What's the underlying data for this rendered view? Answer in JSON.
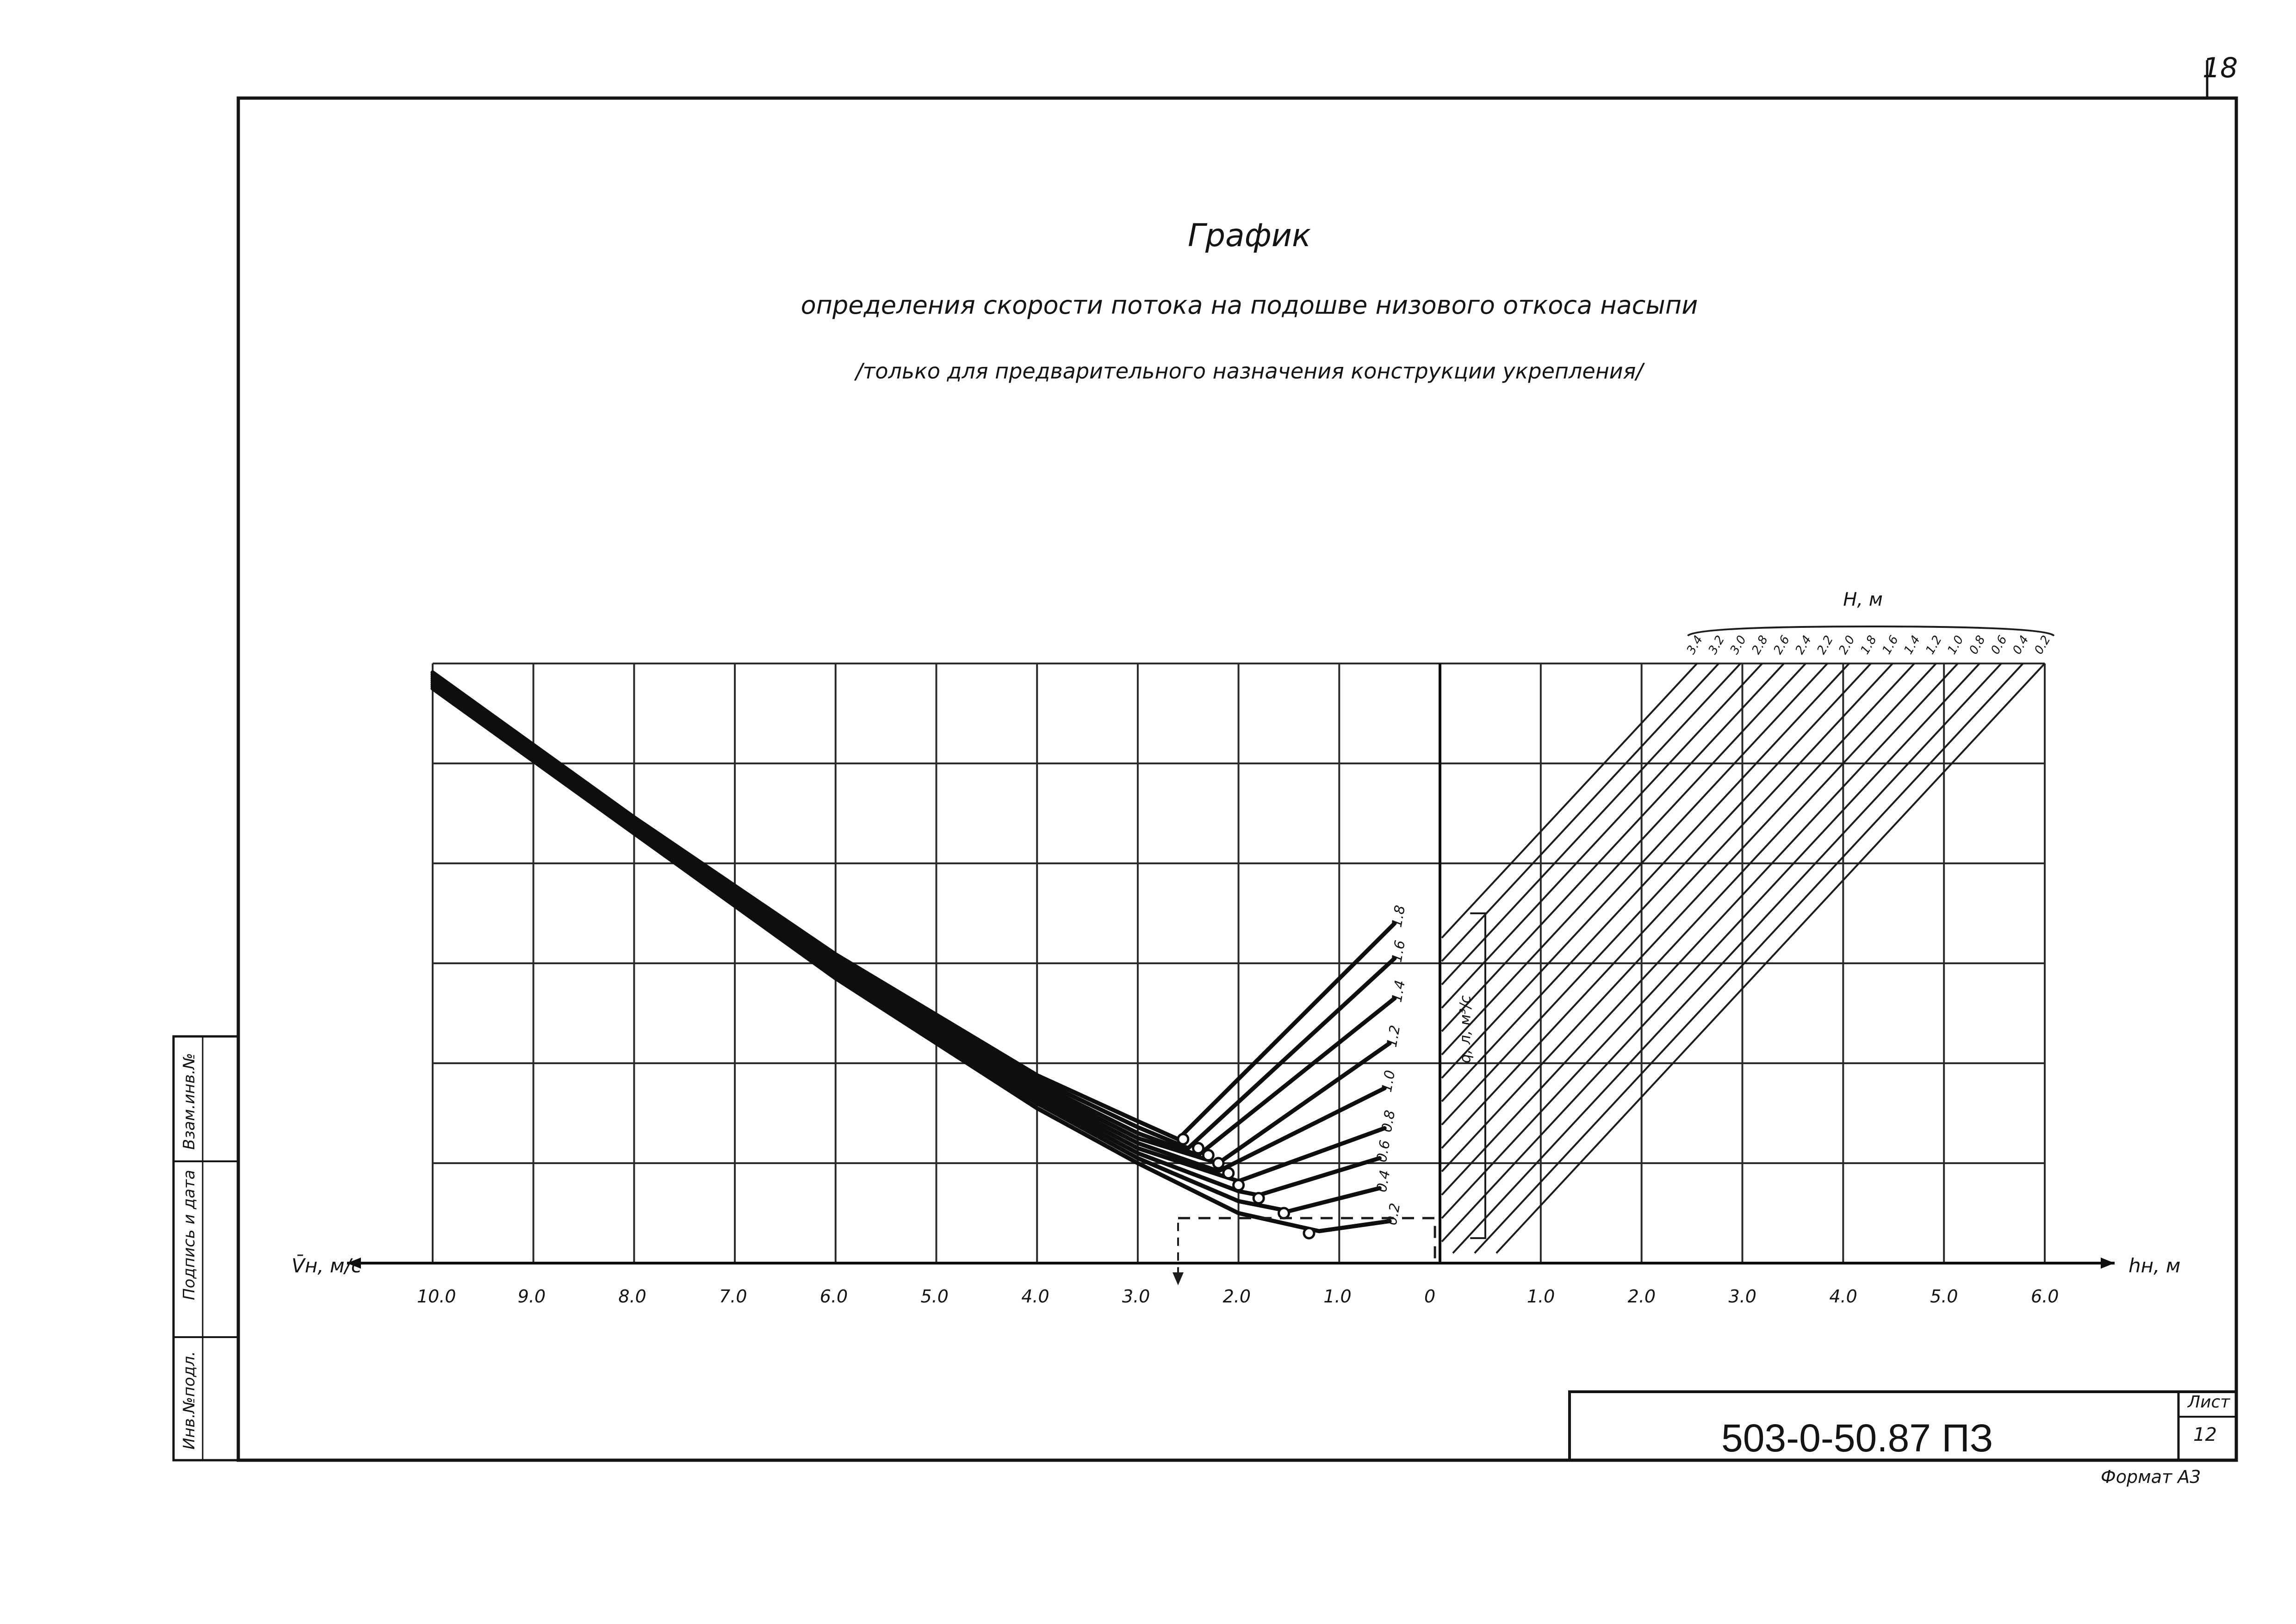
{
  "page": {
    "number": "18",
    "title": "График",
    "subtitle": "определения скорости потока на подошве низового откоса насыпи",
    "note": "/только для предварительного назначения конструкции укрепления/"
  },
  "title_block": {
    "doc_number": "503-0-50.87 ПЗ",
    "sheet_label": "Лист",
    "sheet_value": "12",
    "format": "Формат А3"
  },
  "side_stamp": {
    "cells": [
      "Инв.№подл.",
      "Подпись и дата",
      "Взам.инв.№"
    ]
  },
  "chart_data": {
    "type": "line",
    "left_panel": {
      "xlabel": "V̄н, м/с",
      "x_ticks": [
        "10.0",
        "9.0",
        "8.0",
        "7.0",
        "6.0",
        "5.0",
        "4.0",
        "3.0",
        "2.0",
        "1.0",
        "0"
      ],
      "xlim": [
        10.0,
        0
      ],
      "curve_family_label": "q, л, м³/с",
      "series": [
        {
          "name": "0.2",
          "points": [
            [
              10.0,
              5.75
            ],
            [
              8.0,
              4.3
            ],
            [
              6.0,
              2.85
            ],
            [
              4.0,
              1.55
            ],
            [
              3.0,
              1.0
            ],
            [
              2.0,
              0.5
            ],
            [
              1.2,
              0.32
            ],
            [
              0.5,
              0.42
            ]
          ],
          "marker": [
            1.3,
            0.3
          ]
        },
        {
          "name": "0.4",
          "points": [
            [
              10.0,
              5.77
            ],
            [
              8.0,
              4.32
            ],
            [
              6.0,
              2.88
            ],
            [
              4.0,
              1.6
            ],
            [
              3.0,
              1.05
            ],
            [
              2.0,
              0.62
            ],
            [
              1.5,
              0.52
            ],
            [
              0.6,
              0.75
            ]
          ],
          "marker": [
            1.55,
            0.5
          ]
        },
        {
          "name": "0.6",
          "points": [
            [
              10.0,
              5.79
            ],
            [
              8.0,
              4.34
            ],
            [
              6.0,
              2.91
            ],
            [
              4.0,
              1.64
            ],
            [
              3.0,
              1.1
            ],
            [
              2.0,
              0.72
            ],
            [
              1.8,
              0.68
            ],
            [
              0.6,
              1.05
            ]
          ],
          "marker": [
            1.8,
            0.65
          ]
        },
        {
          "name": "0.8",
          "points": [
            [
              10.0,
              5.81
            ],
            [
              8.0,
              4.36
            ],
            [
              6.0,
              2.94
            ],
            [
              4.0,
              1.68
            ],
            [
              3.0,
              1.15
            ],
            [
              2.0,
              0.82
            ],
            [
              2.0,
              0.82
            ],
            [
              0.55,
              1.35
            ]
          ],
          "marker": [
            2.0,
            0.78
          ]
        },
        {
          "name": "1.0",
          "points": [
            [
              10.0,
              5.83
            ],
            [
              8.0,
              4.38
            ],
            [
              6.0,
              2.97
            ],
            [
              4.0,
              1.72
            ],
            [
              3.0,
              1.2
            ],
            [
              2.2,
              0.92
            ],
            [
              0.55,
              1.75
            ]
          ],
          "marker": [
            2.1,
            0.9
          ]
        },
        {
          "name": "1.2",
          "points": [
            [
              10.0,
              5.85
            ],
            [
              8.0,
              4.4
            ],
            [
              6.0,
              3.0
            ],
            [
              4.0,
              1.76
            ],
            [
              3.0,
              1.25
            ],
            [
              2.2,
              1.0
            ],
            [
              0.5,
              2.2
            ]
          ],
          "marker": [
            2.2,
            1.0
          ]
        },
        {
          "name": "1.4",
          "points": [
            [
              10.0,
              5.87
            ],
            [
              8.0,
              4.42
            ],
            [
              6.0,
              3.03
            ],
            [
              4.0,
              1.8
            ],
            [
              3.0,
              1.3
            ],
            [
              2.4,
              1.08
            ],
            [
              0.45,
              2.65
            ]
          ],
          "marker": [
            2.3,
            1.08
          ]
        },
        {
          "name": "1.6",
          "points": [
            [
              10.0,
              5.89
            ],
            [
              8.0,
              4.44
            ],
            [
              6.0,
              3.06
            ],
            [
              4.0,
              1.84
            ],
            [
              3.0,
              1.36
            ],
            [
              2.5,
              1.15
            ],
            [
              0.45,
              3.05
            ]
          ],
          "marker": [
            2.4,
            1.15
          ]
        },
        {
          "name": "1.8",
          "points": [
            [
              10.0,
              5.91
            ],
            [
              8.0,
              4.46
            ],
            [
              6.0,
              3.09
            ],
            [
              4.0,
              1.88
            ],
            [
              3.0,
              1.42
            ],
            [
              2.6,
              1.24
            ],
            [
              0.45,
              3.4
            ]
          ],
          "marker": [
            2.55,
            1.24
          ]
        }
      ]
    },
    "right_panel": {
      "xlabel": "hн, м",
      "x_ticks": [
        "0",
        "1.0",
        "2.0",
        "3.0",
        "4.0",
        "5.0",
        "6.0"
      ],
      "xlim": [
        0,
        6.0
      ],
      "family_label": "H, м",
      "family_values": [
        "3.4",
        "3.2",
        "3.0",
        "2.8",
        "2.6",
        "2.4",
        "2.2",
        "2.0",
        "1.8",
        "1.6",
        "1.4",
        "1.2",
        "1.0",
        "0.8",
        "0.6",
        "0.4",
        "0.2"
      ]
    },
    "ylim": [
      0,
      6
    ],
    "grid": true,
    "example_path": [
      [
        2.6,
        0.45
      ],
      [
        0.05,
        0.45
      ],
      [
        0.05,
        0.2
      ]
    ]
  }
}
